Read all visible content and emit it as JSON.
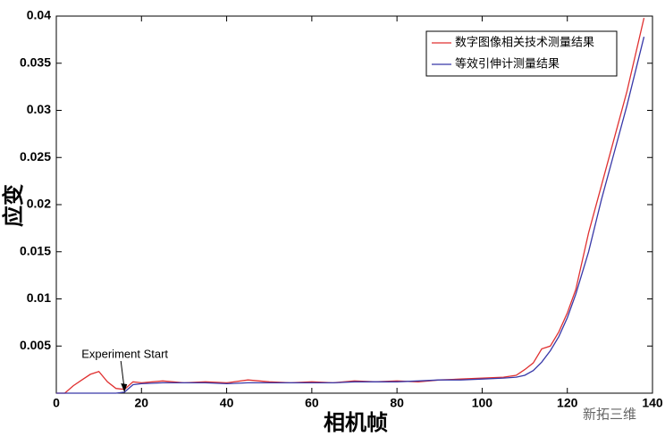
{
  "chart_data": {
    "type": "line",
    "xlabel": "相机帧",
    "ylabel": "应变",
    "x": [
      0,
      2,
      4,
      6,
      8,
      10,
      12,
      14,
      16,
      18,
      20,
      25,
      30,
      35,
      40,
      45,
      50,
      55,
      60,
      65,
      70,
      75,
      80,
      85,
      90,
      95,
      100,
      105,
      108,
      110,
      112,
      114,
      116,
      118,
      120,
      122,
      125,
      128,
      131,
      134,
      138
    ],
    "series": [
      {
        "name": "数字图像相关技术测量结果",
        "color": "#e03030",
        "values": [
          0,
          0,
          0.0008,
          0.0014,
          0.002,
          0.0023,
          0.0012,
          0.0005,
          0.0004,
          0.0012,
          0.0011,
          0.0013,
          0.0011,
          0.0012,
          0.0011,
          0.0014,
          0.0012,
          0.0011,
          0.0012,
          0.0011,
          0.0013,
          0.0012,
          0.0013,
          0.0012,
          0.0014,
          0.0015,
          0.0016,
          0.0017,
          0.0019,
          0.0025,
          0.0032,
          0.0047,
          0.005,
          0.0065,
          0.0085,
          0.011,
          0.017,
          0.022,
          0.027,
          0.032,
          0.0398
        ]
      },
      {
        "name": "等效引伸计测量结果",
        "color": "#3838a8",
        "values": [
          0,
          0,
          0,
          0,
          0,
          0,
          0,
          0,
          0.0001,
          0.0009,
          0.001,
          0.0011,
          0.0011,
          0.0011,
          0.001,
          0.0011,
          0.0011,
          0.0011,
          0.0011,
          0.0011,
          0.0012,
          0.0012,
          0.0012,
          0.0013,
          0.0014,
          0.0014,
          0.0015,
          0.0016,
          0.0017,
          0.0019,
          0.0024,
          0.0033,
          0.0045,
          0.006,
          0.008,
          0.0105,
          0.015,
          0.0205,
          0.0255,
          0.0305,
          0.0378
        ]
      }
    ],
    "xlim": [
      0,
      140
    ],
    "xticks": [
      0,
      20,
      40,
      60,
      80,
      100,
      120,
      140
    ],
    "ylim": [
      0,
      0.04
    ],
    "yticks": [
      0.005,
      0.01,
      0.015,
      0.02,
      0.025,
      0.03,
      0.035,
      0.04
    ],
    "legend": "upper right",
    "annotations": [
      {
        "text": "Experiment Start",
        "x": 16,
        "y": 0
      }
    ],
    "watermark": "新拓三维"
  }
}
